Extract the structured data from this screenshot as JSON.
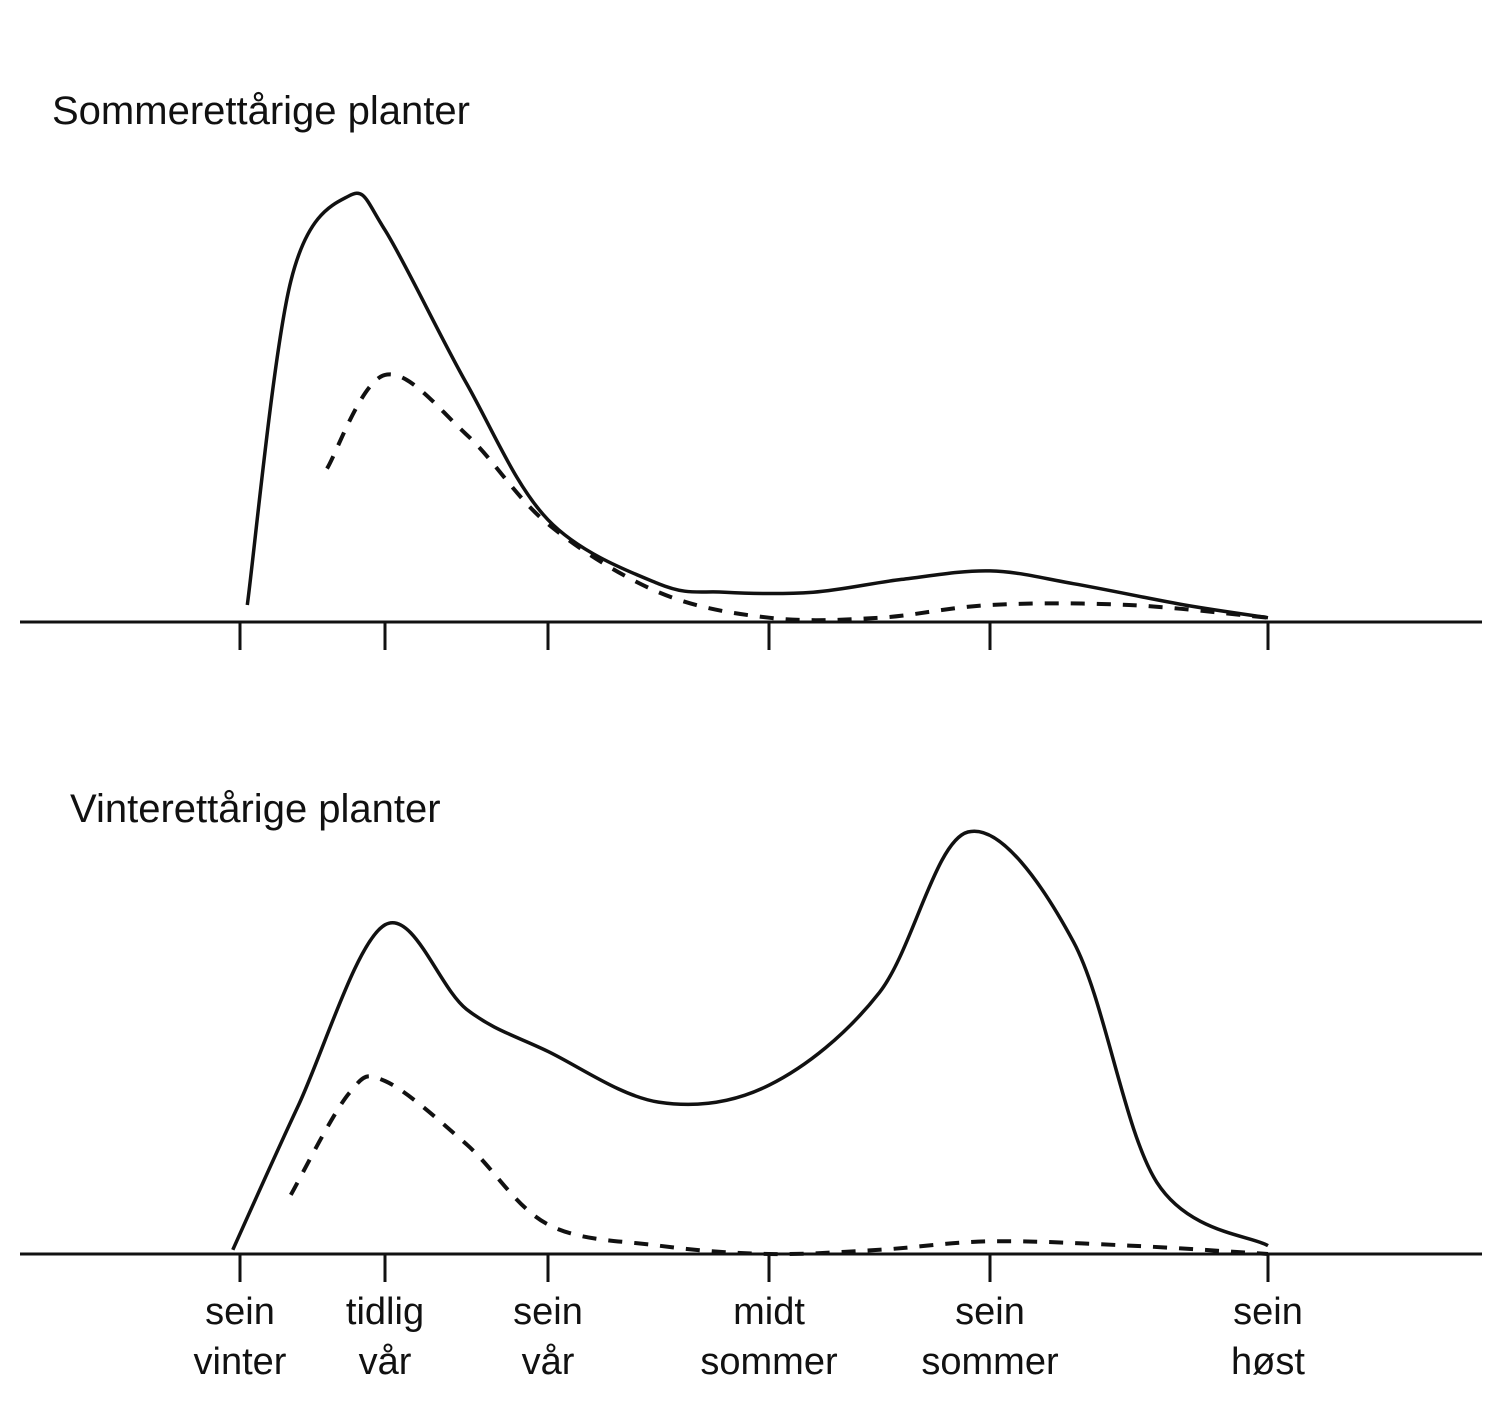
{
  "chart_data": [
    {
      "type": "line",
      "title": "Sommerettårige planter",
      "categories": [
        "sein vinter",
        "tidlig vår",
        "sein vår",
        "midt sommer",
        "sein sommer",
        "sein høst"
      ],
      "series": [
        {
          "style": "solid",
          "x": [
            0.05,
            0.35,
            0.75,
            1.0,
            1.5,
            2.0,
            2.5,
            2.8,
            3.2,
            3.6,
            4.0,
            4.3,
            4.7,
            5.0
          ],
          "y": [
            0.04,
            0.8,
            1.0,
            0.92,
            0.56,
            0.24,
            0.09,
            0.07,
            0.07,
            0.1,
            0.12,
            0.09,
            0.04,
            0.01
          ]
        },
        {
          "style": "dashed",
          "x": [
            0.6,
            1.0,
            1.5,
            2.0,
            2.5,
            3.0,
            3.5,
            4.0,
            4.5,
            5.0
          ],
          "y": [
            0.36,
            0.58,
            0.44,
            0.23,
            0.07,
            0.01,
            0.01,
            0.04,
            0.04,
            0.01
          ]
        }
      ]
    },
    {
      "type": "line",
      "title": "Vinterettårige planter",
      "categories": [
        "sein vinter",
        "tidlig vår",
        "sein vår",
        "midt sommer",
        "sein sommer",
        "sein høst"
      ],
      "series": [
        {
          "style": "solid",
          "x": [
            -0.05,
            0.4,
            1.0,
            1.5,
            2.0,
            2.5,
            3.0,
            3.5,
            3.9,
            4.3,
            4.6,
            5.0
          ],
          "y": [
            0.01,
            0.35,
            0.78,
            0.58,
            0.48,
            0.36,
            0.4,
            0.62,
            1.0,
            0.74,
            0.17,
            0.02
          ]
        },
        {
          "style": "dashed",
          "x": [
            0.35,
            0.75,
            1.0,
            1.5,
            2.0,
            2.5,
            3.0,
            3.5,
            4.0,
            4.5,
            5.0
          ],
          "y": [
            0.14,
            0.38,
            0.41,
            0.26,
            0.07,
            0.02,
            0.0,
            0.01,
            0.03,
            0.02,
            0.0
          ]
        }
      ]
    }
  ]
}
